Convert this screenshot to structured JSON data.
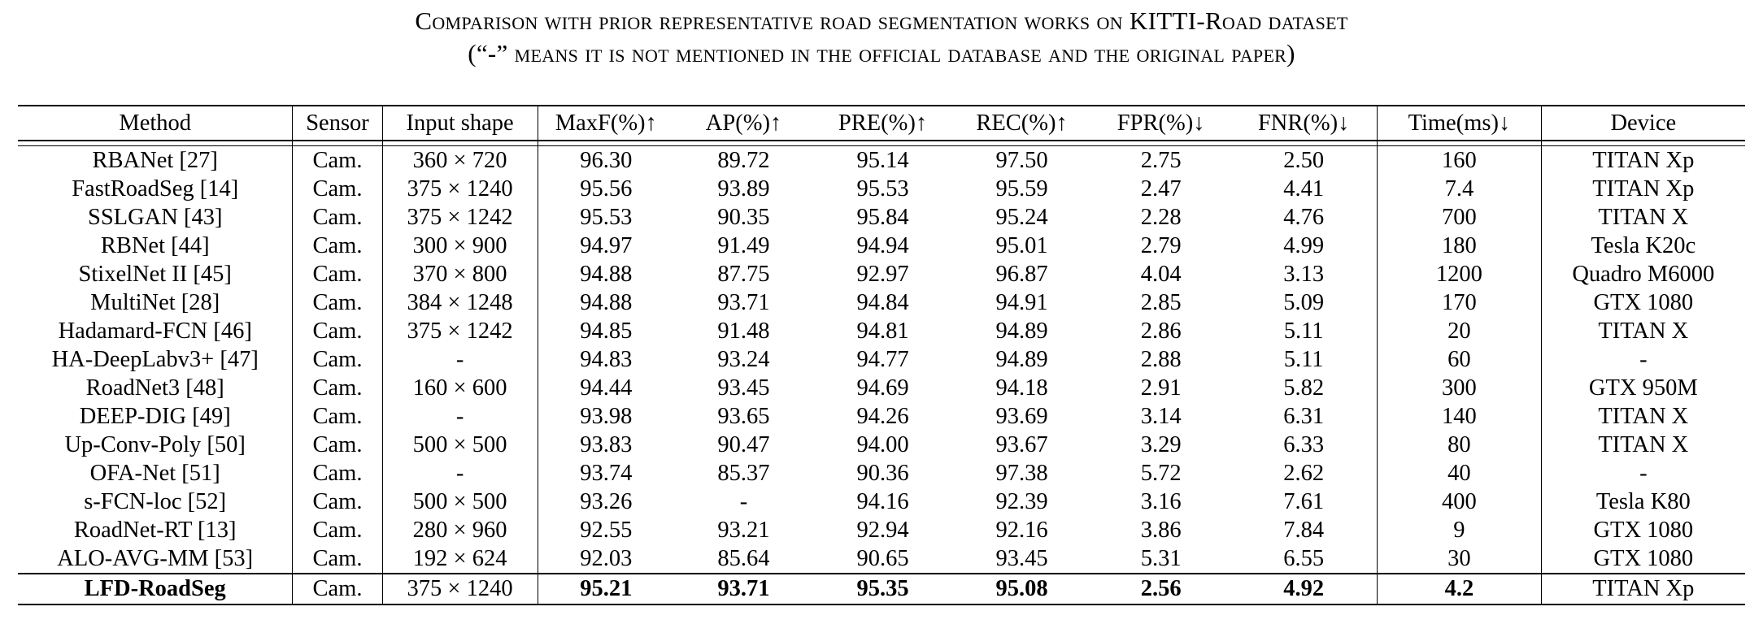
{
  "caption": {
    "line1": "Comparison with prior representative road segmentation works on KITTI-Road dataset",
    "line2": "(“-” means it is not mentioned in the official database and the original paper)"
  },
  "table": {
    "headers": [
      "Method",
      "Sensor",
      "Input shape",
      "MaxF(%)↑",
      "AP(%)↑",
      "PRE(%)↑",
      "REC(%)↑",
      "FPR(%)↓",
      "FNR(%)↓",
      "Time(ms)↓",
      "Device"
    ],
    "rows": [
      [
        "RBANet [27]",
        "Cam.",
        "360 × 720",
        "96.30",
        "89.72",
        "95.14",
        "97.50",
        "2.75",
        "2.50",
        "160",
        "TITAN Xp"
      ],
      [
        "FastRoadSeg [14]",
        "Cam.",
        "375 × 1240",
        "95.56",
        "93.89",
        "95.53",
        "95.59",
        "2.47",
        "4.41",
        "7.4",
        "TITAN Xp"
      ],
      [
        "SSLGAN [43]",
        "Cam.",
        "375 × 1242",
        "95.53",
        "90.35",
        "95.84",
        "95.24",
        "2.28",
        "4.76",
        "700",
        "TITAN X"
      ],
      [
        "RBNet [44]",
        "Cam.",
        "300 × 900",
        "94.97",
        "91.49",
        "94.94",
        "95.01",
        "2.79",
        "4.99",
        "180",
        "Tesla K20c"
      ],
      [
        "StixelNet II [45]",
        "Cam.",
        "370 × 800",
        "94.88",
        "87.75",
        "92.97",
        "96.87",
        "4.04",
        "3.13",
        "1200",
        "Quadro M6000"
      ],
      [
        "MultiNet [28]",
        "Cam.",
        "384 × 1248",
        "94.88",
        "93.71",
        "94.84",
        "94.91",
        "2.85",
        "5.09",
        "170",
        "GTX 1080"
      ],
      [
        "Hadamard-FCN [46]",
        "Cam.",
        "375 × 1242",
        "94.85",
        "91.48",
        "94.81",
        "94.89",
        "2.86",
        "5.11",
        "20",
        "TITAN X"
      ],
      [
        "HA-DeepLabv3+ [47]",
        "Cam.",
        "-",
        "94.83",
        "93.24",
        "94.77",
        "94.89",
        "2.88",
        "5.11",
        "60",
        "-"
      ],
      [
        "RoadNet3 [48]",
        "Cam.",
        "160 × 600",
        "94.44",
        "93.45",
        "94.69",
        "94.18",
        "2.91",
        "5.82",
        "300",
        "GTX 950M"
      ],
      [
        "DEEP-DIG [49]",
        "Cam.",
        "-",
        "93.98",
        "93.65",
        "94.26",
        "93.69",
        "3.14",
        "6.31",
        "140",
        "TITAN X"
      ],
      [
        "Up-Conv-Poly [50]",
        "Cam.",
        "500 × 500",
        "93.83",
        "90.47",
        "94.00",
        "93.67",
        "3.29",
        "6.33",
        "80",
        "TITAN X"
      ],
      [
        "OFA-Net [51]",
        "Cam.",
        "-",
        "93.74",
        "85.37",
        "90.36",
        "97.38",
        "5.72",
        "2.62",
        "40",
        "-"
      ],
      [
        "s-FCN-loc [52]",
        "Cam.",
        "500 × 500",
        "93.26",
        "-",
        "94.16",
        "92.39",
        "3.16",
        "7.61",
        "400",
        "Tesla K80"
      ],
      [
        "RoadNet-RT [13]",
        "Cam.",
        "280 × 960",
        "92.55",
        "93.21",
        "92.94",
        "92.16",
        "3.86",
        "7.84",
        "9",
        "GTX 1080"
      ],
      [
        "ALO-AVG-MM [53]",
        "Cam.",
        "192 × 624",
        "92.03",
        "85.64",
        "90.65",
        "93.45",
        "5.31",
        "6.55",
        "30",
        "GTX 1080"
      ]
    ],
    "final_row": [
      "LFD-RoadSeg",
      "Cam.",
      "375 × 1240",
      "95.21",
      "93.71",
      "95.35",
      "95.08",
      "2.56",
      "4.92",
      "4.2",
      "TITAN Xp"
    ]
  }
}
